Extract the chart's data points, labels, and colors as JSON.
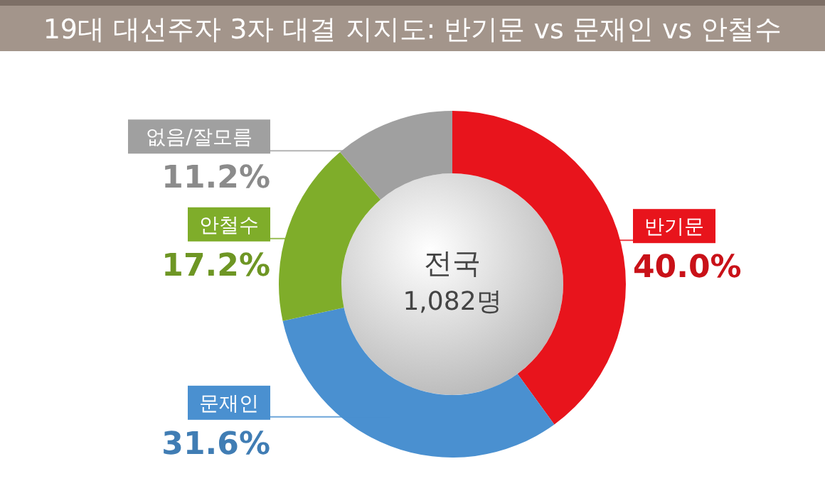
{
  "chart_data": {
    "type": "donut",
    "title": "19대 대선주자 3자 대결 지지도: 반기문 vs 문재인 vs 안철수",
    "categories": [
      "반기문",
      "문재인",
      "안철수",
      "없음/잘모름"
    ],
    "values": [
      40.0,
      31.6,
      17.2,
      11.2
    ],
    "value_labels": [
      "40.0%",
      "31.6%",
      "17.2%",
      "11.2%"
    ],
    "colors": [
      "#e8141c",
      "#4a90d0",
      "#7fad2a",
      "#a0a0a0"
    ],
    "annotations": [
      "전국",
      "1,082명"
    ]
  }
}
